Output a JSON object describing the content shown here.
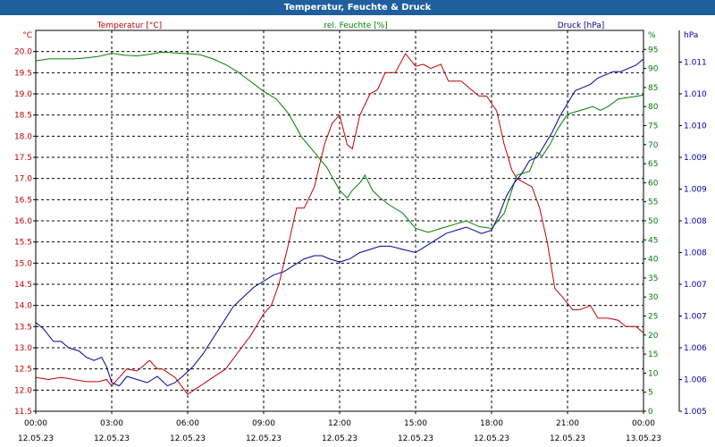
{
  "window": {
    "title": "Temperatur, Feuchte & Druck"
  },
  "chart_data": {
    "type": "line",
    "title": "Temperatur, Feuchte & Druck",
    "grid": true,
    "colors": {
      "temperature": "#c00000",
      "humidity": "#008000",
      "pressure": "#0000a0",
      "grid": "#000000"
    },
    "x_ticks": [
      {
        "x": 0,
        "time": "00:00",
        "date": "12.05.23"
      },
      {
        "x": 3,
        "time": "03:00",
        "date": "12.05.23"
      },
      {
        "x": 6,
        "time": "06:00",
        "date": "12.05.23"
      },
      {
        "x": 9,
        "time": "09:00",
        "date": "12.05.23"
      },
      {
        "x": 12,
        "time": "12:00",
        "date": "12.05.23"
      },
      {
        "x": 15,
        "time": "15:00",
        "date": "12.05.23"
      },
      {
        "x": 18,
        "time": "18:00",
        "date": "12.05.23"
      },
      {
        "x": 21,
        "time": "21:00",
        "date": "12.05.23"
      },
      {
        "x": 24,
        "time": "00:00",
        "date": "13.05.23"
      }
    ],
    "axes": {
      "temperature": {
        "label": "Temperatur [°C]",
        "unit": "°C",
        "ylim": [
          11.5,
          20.5
        ],
        "ticks": [
          "11.5",
          "12.0",
          "12.5",
          "13.0",
          "13.5",
          "14.0",
          "14.5",
          "15.0",
          "15.5",
          "16.0",
          "16.5",
          "17.0",
          "17.5",
          "18.0",
          "18.5",
          "19.0",
          "19.5",
          "20.0"
        ]
      },
      "humidity": {
        "label": "rel. Feuchte [%]",
        "unit": "%",
        "ylim": [
          0,
          100
        ],
        "ticks": [
          "0",
          "5",
          "10",
          "15",
          "20",
          "25",
          "30",
          "35",
          "40",
          "45",
          "50",
          "55",
          "60",
          "65",
          "70",
          "75",
          "80",
          "85",
          "90",
          "95"
        ]
      },
      "pressure": {
        "label": "Druck [hPa]",
        "unit": "hPa",
        "ylim": [
          1005.5,
          1011.5
        ],
        "ticks": [
          {
            "v": 1005.5,
            "label": "1.005"
          },
          {
            "v": 1006.0,
            "label": "1.006"
          },
          {
            "v": 1006.5,
            "label": "1.006"
          },
          {
            "v": 1007.0,
            "label": "1.007"
          },
          {
            "v": 1007.5,
            "label": "1.007"
          },
          {
            "v": 1008.0,
            "label": "1.008"
          },
          {
            "v": 1008.5,
            "label": "1.008"
          },
          {
            "v": 1009.0,
            "label": "1.009"
          },
          {
            "v": 1009.5,
            "label": "1.009"
          },
          {
            "v": 1010.0,
            "label": "1.010"
          },
          {
            "v": 1010.5,
            "label": "1.010"
          },
          {
            "v": 1011.0,
            "label": "1.011"
          }
        ]
      }
    },
    "series": [
      {
        "key": "temperature",
        "name": "Temperatur [°C]",
        "axis": "temperature",
        "points": [
          [
            0,
            12.3
          ],
          [
            0.5,
            12.25
          ],
          [
            1,
            12.3
          ],
          [
            1.5,
            12.25
          ],
          [
            2,
            12.2
          ],
          [
            2.5,
            12.2
          ],
          [
            2.8,
            12.25
          ],
          [
            3,
            12.1
          ],
          [
            3.3,
            12.3
          ],
          [
            3.6,
            12.5
          ],
          [
            4,
            12.45
          ],
          [
            4.5,
            12.7
          ],
          [
            4.8,
            12.5
          ],
          [
            5,
            12.5
          ],
          [
            5.5,
            12.3
          ],
          [
            6,
            11.9
          ],
          [
            6.5,
            12.1
          ],
          [
            7,
            12.3
          ],
          [
            7.5,
            12.5
          ],
          [
            8,
            12.9
          ],
          [
            8.5,
            13.3
          ],
          [
            9,
            13.8
          ],
          [
            9.3,
            14.0
          ],
          [
            9.6,
            14.5
          ],
          [
            10,
            15.5
          ],
          [
            10.3,
            16.3
          ],
          [
            10.6,
            16.3
          ],
          [
            11,
            16.8
          ],
          [
            11.4,
            17.8
          ],
          [
            11.7,
            18.3
          ],
          [
            12,
            18.5
          ],
          [
            12.3,
            17.8
          ],
          [
            12.5,
            17.7
          ],
          [
            12.8,
            18.5
          ],
          [
            13.2,
            19.0
          ],
          [
            13.5,
            19.1
          ],
          [
            13.8,
            19.5
          ],
          [
            14.2,
            19.5
          ],
          [
            14.6,
            19.95
          ],
          [
            15,
            19.65
          ],
          [
            15.3,
            19.7
          ],
          [
            15.6,
            19.6
          ],
          [
            16,
            19.7
          ],
          [
            16.3,
            19.3
          ],
          [
            16.8,
            19.3
          ],
          [
            17.2,
            19.1
          ],
          [
            17.5,
            18.95
          ],
          [
            17.8,
            18.95
          ],
          [
            18.2,
            18.6
          ],
          [
            18.5,
            17.8
          ],
          [
            18.8,
            17.2
          ],
          [
            19,
            17.0
          ],
          [
            19.3,
            16.9
          ],
          [
            19.6,
            16.8
          ],
          [
            19.9,
            16.3
          ],
          [
            20.2,
            15.5
          ],
          [
            20.5,
            14.4
          ],
          [
            20.8,
            14.2
          ],
          [
            21.2,
            13.9
          ],
          [
            21.5,
            13.9
          ],
          [
            21.9,
            14.0
          ],
          [
            22.2,
            13.7
          ],
          [
            22.6,
            13.7
          ],
          [
            23,
            13.65
          ],
          [
            23.3,
            13.5
          ],
          [
            23.7,
            13.5
          ],
          [
            24,
            13.35
          ]
        ]
      },
      {
        "key": "humidity",
        "name": "rel. Feuchte [%]",
        "axis": "humidity",
        "points": [
          [
            0,
            92
          ],
          [
            0.5,
            92.5
          ],
          [
            1,
            92.5
          ],
          [
            1.5,
            92.5
          ],
          [
            2,
            92.8
          ],
          [
            2.5,
            93.2
          ],
          [
            3,
            94
          ],
          [
            3.5,
            93.5
          ],
          [
            4,
            93.3
          ],
          [
            4.5,
            93.7
          ],
          [
            5,
            94.3
          ],
          [
            5.5,
            94.1
          ],
          [
            6,
            93.9
          ],
          [
            6.5,
            93.6
          ],
          [
            7,
            92.5
          ],
          [
            7.5,
            91
          ],
          [
            8,
            89
          ],
          [
            8.5,
            86.5
          ],
          [
            9,
            84
          ],
          [
            9.5,
            82
          ],
          [
            10,
            78
          ],
          [
            10.5,
            72
          ],
          [
            11,
            68
          ],
          [
            11.5,
            64
          ],
          [
            12,
            58
          ],
          [
            12.3,
            56
          ],
          [
            12.5,
            58
          ],
          [
            12.8,
            60
          ],
          [
            13,
            62
          ],
          [
            13.3,
            58
          ],
          [
            13.6,
            56
          ],
          [
            14,
            54
          ],
          [
            14.5,
            52
          ],
          [
            15,
            48
          ],
          [
            15.5,
            47
          ],
          [
            16,
            48
          ],
          [
            16.5,
            49
          ],
          [
            17,
            50
          ],
          [
            17.5,
            48.5
          ],
          [
            18,
            48
          ],
          [
            18.5,
            52
          ],
          [
            19,
            62
          ],
          [
            19.5,
            63
          ],
          [
            19.8,
            68
          ],
          [
            20,
            67
          ],
          [
            20.3,
            70
          ],
          [
            20.6,
            74
          ],
          [
            21,
            78
          ],
          [
            21.5,
            79
          ],
          [
            22,
            80
          ],
          [
            22.3,
            79
          ],
          [
            22.6,
            80
          ],
          [
            23,
            82
          ],
          [
            23.5,
            82.5
          ],
          [
            24,
            83
          ]
        ]
      },
      {
        "key": "pressure",
        "name": "Druck [hPa]",
        "axis": "pressure",
        "points": [
          [
            0,
            1006.9
          ],
          [
            0.3,
            1006.8
          ],
          [
            0.7,
            1006.6
          ],
          [
            1,
            1006.6
          ],
          [
            1.3,
            1006.5
          ],
          [
            1.7,
            1006.45
          ],
          [
            2,
            1006.35
          ],
          [
            2.3,
            1006.3
          ],
          [
            2.6,
            1006.35
          ],
          [
            2.8,
            1006.2
          ],
          [
            3,
            1005.95
          ],
          [
            3.3,
            1005.9
          ],
          [
            3.6,
            1006.05
          ],
          [
            4,
            1006.0
          ],
          [
            4.4,
            1005.95
          ],
          [
            4.8,
            1006.05
          ],
          [
            5.2,
            1005.9
          ],
          [
            5.5,
            1005.95
          ],
          [
            5.8,
            1006.05
          ],
          [
            6.2,
            1006.2
          ],
          [
            6.6,
            1006.4
          ],
          [
            7,
            1006.65
          ],
          [
            7.4,
            1006.9
          ],
          [
            7.8,
            1007.15
          ],
          [
            8.2,
            1007.3
          ],
          [
            8.6,
            1007.45
          ],
          [
            9,
            1007.55
          ],
          [
            9.4,
            1007.65
          ],
          [
            9.8,
            1007.7
          ],
          [
            10.2,
            1007.8
          ],
          [
            10.6,
            1007.9
          ],
          [
            11,
            1007.95
          ],
          [
            11.3,
            1007.95
          ],
          [
            11.6,
            1007.9
          ],
          [
            12,
            1007.85
          ],
          [
            12.4,
            1007.9
          ],
          [
            12.8,
            1008.0
          ],
          [
            13.2,
            1008.05
          ],
          [
            13.6,
            1008.1
          ],
          [
            14,
            1008.1
          ],
          [
            14.5,
            1008.05
          ],
          [
            15,
            1008.0
          ],
          [
            15.4,
            1008.1
          ],
          [
            15.8,
            1008.2
          ],
          [
            16.2,
            1008.3
          ],
          [
            16.6,
            1008.35
          ],
          [
            17,
            1008.4
          ],
          [
            17.3,
            1008.35
          ],
          [
            17.6,
            1008.3
          ],
          [
            18,
            1008.35
          ],
          [
            18.3,
            1008.6
          ],
          [
            18.6,
            1008.9
          ],
          [
            18.9,
            1009.1
          ],
          [
            19.2,
            1009.25
          ],
          [
            19.5,
            1009.45
          ],
          [
            19.8,
            1009.5
          ],
          [
            20.1,
            1009.7
          ],
          [
            20.4,
            1009.9
          ],
          [
            20.7,
            1010.15
          ],
          [
            21,
            1010.35
          ],
          [
            21.3,
            1010.55
          ],
          [
            21.6,
            1010.6
          ],
          [
            21.9,
            1010.65
          ],
          [
            22.2,
            1010.75
          ],
          [
            22.5,
            1010.8
          ],
          [
            22.8,
            1010.85
          ],
          [
            23.1,
            1010.85
          ],
          [
            23.4,
            1010.9
          ],
          [
            23.7,
            1010.95
          ],
          [
            24,
            1011.05
          ]
        ]
      }
    ]
  }
}
